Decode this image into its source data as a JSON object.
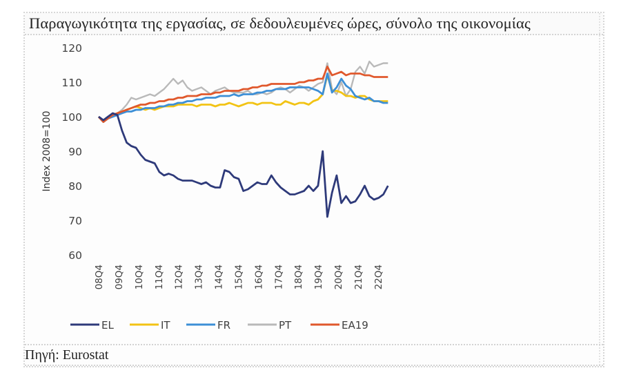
{
  "title": "Παραγωγικότητα της εργασίας, σε δεδουλευμένες ώρες, σύνολο της οικονομίας",
  "source": "Πηγή: Eurostat",
  "chart_data": {
    "type": "line",
    "title": "Παραγωγικότητα της εργασίας, σε δεδουλευμένες ώρες, σύνολο της οικονομίας",
    "xlabel": "",
    "ylabel": "Index 2008=100",
    "ylim": [
      60,
      120
    ],
    "yticks": [
      60,
      70,
      80,
      90,
      100,
      110,
      120
    ],
    "grid": false,
    "legend_position": "bottom",
    "x_tick_labels": [
      "08Q4",
      "09Q4",
      "10Q4",
      "11Q4",
      "12Q4",
      "13Q4",
      "14Q4",
      "15Q4",
      "16Q4",
      "17Q4",
      "18Q4",
      "19Q4",
      "20Q4",
      "21Q4",
      "22Q4"
    ],
    "x_range": [
      "2008Q4",
      "2023Q2"
    ],
    "series": [
      {
        "name": "EL",
        "color": "#2e3a7a",
        "values": [
          100,
          99,
          100,
          101,
          100.5,
          96,
          92.5,
          91.5,
          91,
          89,
          87.5,
          87,
          86.5,
          84,
          83,
          83.5,
          83,
          82,
          81.5,
          81.5,
          81.5,
          81,
          80.5,
          81,
          80,
          79.5,
          79.5,
          84.5,
          84,
          82.5,
          82,
          78.5,
          79,
          80,
          81,
          80.5,
          80.5,
          83,
          81,
          79.5,
          78.5,
          77.5,
          77.5,
          78,
          78.5,
          80,
          78.5,
          80,
          90,
          71,
          78,
          83,
          75,
          77,
          75,
          75.5,
          77.5,
          80,
          77,
          76,
          76.5,
          77.5,
          80
        ]
      },
      {
        "name": "IT",
        "color": "#f2c314",
        "values": [
          100,
          98.5,
          99.5,
          100.5,
          101,
          101.5,
          102,
          102.5,
          103,
          102.5,
          102,
          102.5,
          102,
          102.5,
          103,
          103,
          103,
          103.5,
          103.5,
          103.5,
          103.5,
          103,
          103.5,
          103.5,
          103.5,
          103,
          103.5,
          103.5,
          104,
          103.5,
          103,
          103.5,
          104,
          104,
          103.5,
          104,
          104,
          104,
          103.5,
          103.5,
          104.5,
          104,
          103.5,
          104,
          104,
          103.5,
          104.5,
          105,
          106.5,
          112,
          107.5,
          107.5,
          107,
          106,
          106,
          105.5,
          106,
          106,
          105,
          104.5,
          104.5,
          104.5,
          104.5
        ]
      },
      {
        "name": "FR",
        "color": "#3d8fd6",
        "values": [
          100,
          98.5,
          99.5,
          100,
          100.5,
          101,
          101.5,
          101.5,
          102,
          102,
          102.5,
          102.5,
          102.5,
          103,
          103,
          103.5,
          103.5,
          104,
          104,
          104.5,
          104.5,
          105,
          105,
          105.5,
          105.5,
          105.5,
          106,
          106,
          106,
          106.5,
          106,
          106.5,
          106.5,
          106.5,
          107,
          107,
          107.5,
          107.5,
          108,
          108,
          108,
          108.5,
          108.5,
          108.5,
          108.5,
          108.5,
          108,
          107.5,
          106.5,
          112.5,
          107,
          108.5,
          111,
          109,
          108,
          106,
          105.5,
          105,
          105.5,
          104.5,
          104.5,
          104,
          104
        ]
      },
      {
        "name": "PT",
        "color": "#b9b9b9",
        "values": [
          100,
          99,
          99.5,
          100.5,
          101,
          102,
          103.5,
          105.5,
          105,
          105.5,
          106,
          106.5,
          106,
          107,
          108,
          109.5,
          111,
          109.5,
          110.5,
          108.5,
          107.5,
          108,
          108.5,
          107.5,
          106.5,
          107.5,
          108,
          108.5,
          107.5,
          107,
          107,
          107,
          107.5,
          106.5,
          106.5,
          107,
          106.5,
          107,
          108,
          108.5,
          108,
          107,
          108,
          109,
          108.5,
          107.5,
          108.5,
          109.5,
          110,
          115.5,
          108,
          106.5,
          110,
          106,
          108,
          113,
          114.5,
          112.5,
          116,
          114.5,
          115,
          115.5,
          115.5
        ]
      },
      {
        "name": "EA19",
        "color": "#e0582c",
        "values": [
          100,
          98.5,
          99.5,
          100.5,
          101,
          101.5,
          102,
          102.5,
          103,
          103.5,
          103.5,
          104,
          104,
          104.5,
          104.5,
          105,
          105,
          105.5,
          105.5,
          106,
          106,
          106,
          106.5,
          106.5,
          106.5,
          107,
          107,
          107.5,
          107.5,
          107.5,
          107.5,
          108,
          108,
          108.5,
          108.5,
          109,
          109,
          109.5,
          109.5,
          109.5,
          109.5,
          109.5,
          109.5,
          110,
          110,
          110.5,
          110.5,
          111,
          111,
          114.5,
          112,
          112.5,
          113,
          112,
          112.5,
          112.5,
          112.5,
          112,
          112,
          111.5,
          111.5,
          111.5,
          111.5
        ]
      }
    ]
  },
  "legend": {
    "items": [
      {
        "label": "EL",
        "color": "#2e3a7a"
      },
      {
        "label": "IT",
        "color": "#f2c314"
      },
      {
        "label": "FR",
        "color": "#3d8fd6"
      },
      {
        "label": "PT",
        "color": "#b9b9b9"
      },
      {
        "label": "EA19",
        "color": "#e0582c"
      }
    ]
  }
}
